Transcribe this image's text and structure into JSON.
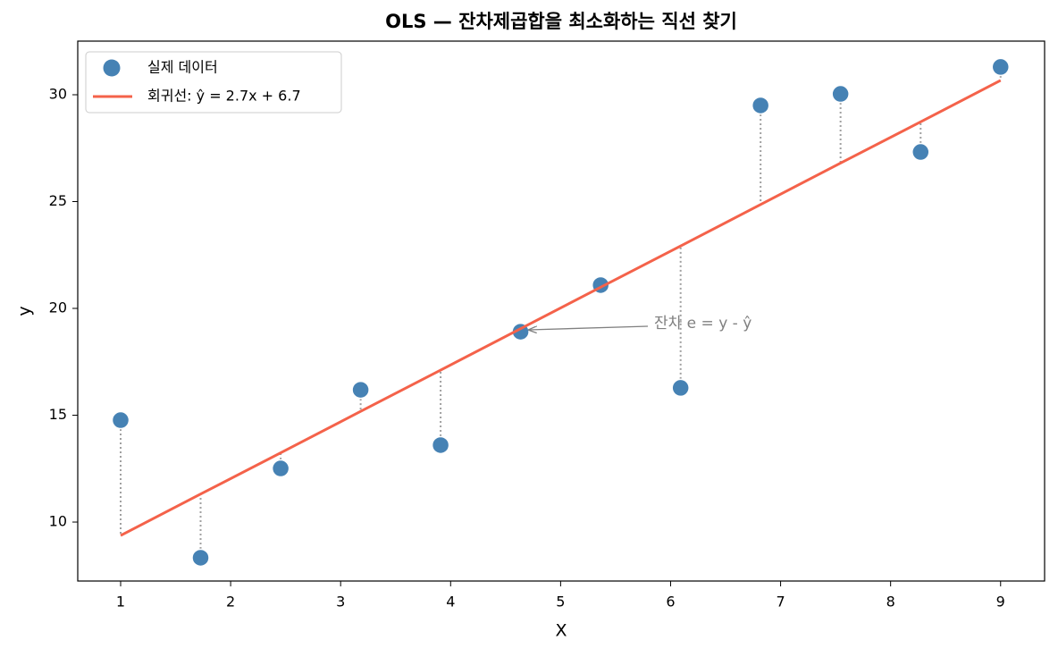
{
  "chart_data": {
    "type": "scatter",
    "title": "OLS — 잔차제곱합을 최소화하는 직선 찾기",
    "xlabel": "X",
    "ylabel": "y",
    "xlim": [
      0.61,
      9.4
    ],
    "ylim": [
      7.24,
      32.51
    ],
    "xticks": [
      1,
      2,
      3,
      4,
      5,
      6,
      7,
      8,
      9
    ],
    "yticks": [
      10,
      15,
      20,
      25,
      30
    ],
    "legend": "upper left",
    "series": [
      {
        "name": "실제 데이터",
        "type": "scatter",
        "color": "#4682b4",
        "x": [
          1,
          1.727,
          2.455,
          3.182,
          3.909,
          4.636,
          5.364,
          6.091,
          6.818,
          7.545,
          8.273,
          9
        ],
        "values": [
          14.77,
          8.33,
          12.51,
          16.19,
          13.6,
          18.91,
          21.09,
          16.28,
          29.5,
          30.04,
          27.32,
          31.3
        ]
      },
      {
        "name": "회귀선: ŷ = 2.7x + 6.7",
        "type": "line",
        "color": "#f4624a",
        "x": [
          1,
          1.727,
          2.455,
          3.182,
          3.909,
          4.636,
          5.364,
          6.091,
          6.818,
          7.545,
          8.273,
          9
        ],
        "values": [
          9.37,
          11.31,
          13.24,
          15.18,
          17.11,
          19.05,
          20.99,
          22.92,
          24.86,
          26.8,
          28.73,
          30.67
        ]
      }
    ],
    "annotation": "잔차 e = y - ŷ"
  }
}
